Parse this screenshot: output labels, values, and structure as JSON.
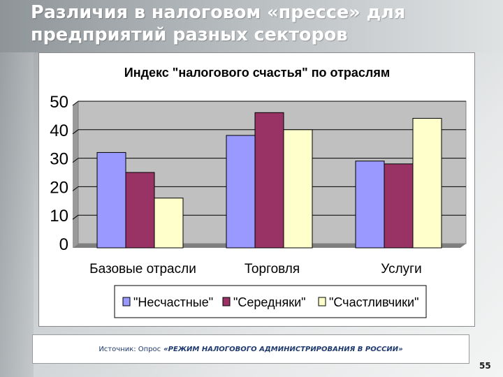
{
  "slide": {
    "title_line1": "Различия в налоговом «прессе» для",
    "title_line2": "предприятий разных секторов",
    "page_number": "55"
  },
  "source": {
    "label": "Источник: Опрос",
    "text": "«РЕЖИМ НАЛОГОВОГО АДМИНИСТРИРОВАНИЯ В РОССИИ»"
  },
  "chart_data": {
    "type": "bar",
    "title": "Индекс \"налогового счастья\" по отраслям",
    "categories": [
      "Базовые отрасли",
      "Торговля",
      "Услуги"
    ],
    "series": [
      {
        "name": "\"Несчастные\"",
        "color": "#9999ff",
        "values": [
          32,
          38,
          29
        ]
      },
      {
        "name": "\"Середняки\"",
        "color": "#993366",
        "values": [
          25,
          46,
          28
        ]
      },
      {
        "name": "\"Счастливчики\"",
        "color": "#ffffcc",
        "values": [
          16,
          40,
          44
        ]
      }
    ],
    "ylim": [
      0,
      50
    ],
    "yticks": [
      "0",
      "10",
      "20",
      "30",
      "40",
      "50"
    ],
    "grid": true,
    "plot_background": "#c0c0c0",
    "legend_position": "bottom"
  }
}
